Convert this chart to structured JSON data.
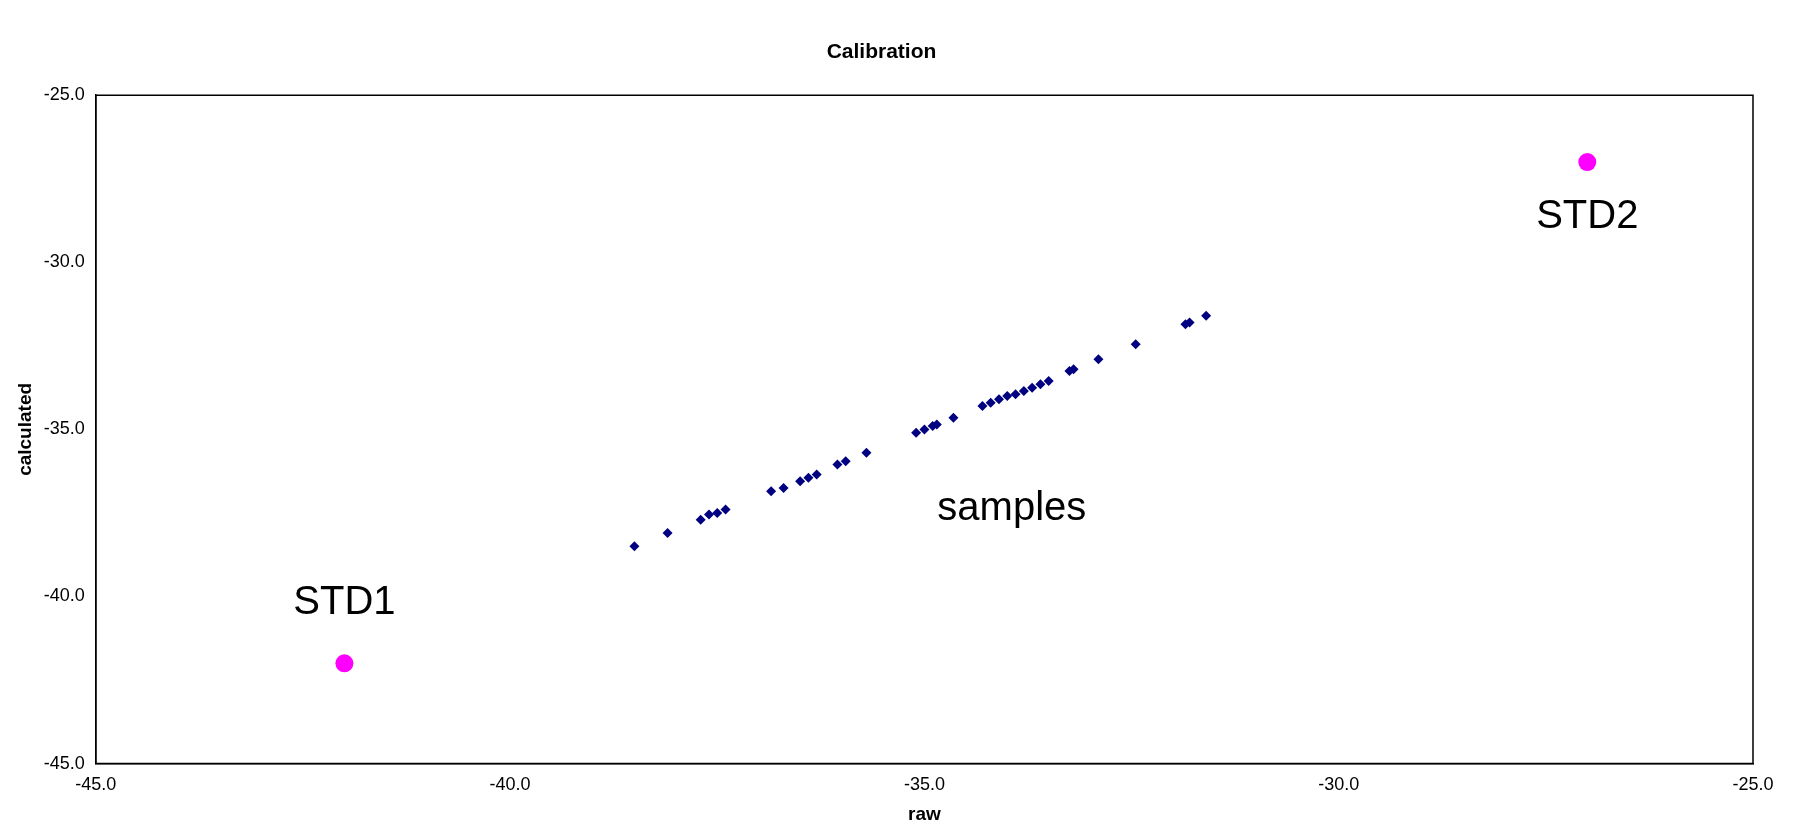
{
  "chart_data": {
    "type": "scatter",
    "title": "Calibration",
    "xlabel": "raw",
    "ylabel": "calculated",
    "xlim": [
      -45,
      -25
    ],
    "ylim": [
      -45,
      -25
    ],
    "xticks": [
      {
        "value": -45,
        "label": "-45.0"
      },
      {
        "value": -40,
        "label": "-40.0"
      },
      {
        "value": -35,
        "label": "-35.0"
      },
      {
        "value": -30,
        "label": "-30.0"
      },
      {
        "value": -25,
        "label": "-25.0"
      }
    ],
    "yticks": [
      {
        "value": -45,
        "label": "-45.0"
      },
      {
        "value": -40,
        "label": "-40.0"
      },
      {
        "value": -35,
        "label": "-35.0"
      },
      {
        "value": -30,
        "label": "-30.0"
      },
      {
        "value": -25,
        "label": "-25.0"
      }
    ],
    "grid": false,
    "legend": false,
    "series": [
      {
        "name": "samples",
        "marker": "diamond",
        "color": "#000080",
        "x": [
          -38.5,
          -38.1,
          -37.7,
          -37.6,
          -37.5,
          -37.4,
          -36.85,
          -36.7,
          -36.5,
          -36.4,
          -36.3,
          -36.05,
          -35.95,
          -35.7,
          -35.1,
          -35.0,
          -34.9,
          -34.85,
          -34.65,
          -34.3,
          -34.2,
          -34.1,
          -34.0,
          -33.9,
          -33.8,
          -33.7,
          -33.6,
          -33.5,
          -33.25,
          -33.2,
          -32.9,
          -32.45,
          -31.85,
          -31.8,
          -31.6
        ],
        "values": [
          -38.5,
          -38.1,
          -37.7,
          -37.55,
          -37.5,
          -37.4,
          -36.85,
          -36.75,
          -36.55,
          -36.45,
          -36.35,
          -36.05,
          -35.95,
          -35.7,
          -35.1,
          -35.0,
          -34.9,
          -34.85,
          -34.65,
          -34.3,
          -34.2,
          -34.1,
          -34.0,
          -33.95,
          -33.85,
          -33.75,
          -33.65,
          -33.55,
          -33.25,
          -33.2,
          -32.9,
          -32.45,
          -31.85,
          -31.8,
          -31.6
        ]
      },
      {
        "name": "STD1",
        "marker": "circle",
        "color": "#ff00ff",
        "x": [
          -42
        ],
        "values": [
          -42
        ]
      },
      {
        "name": "STD2",
        "marker": "circle",
        "color": "#ff00ff",
        "x": [
          -27
        ],
        "values": [
          -27
        ]
      }
    ]
  }
}
